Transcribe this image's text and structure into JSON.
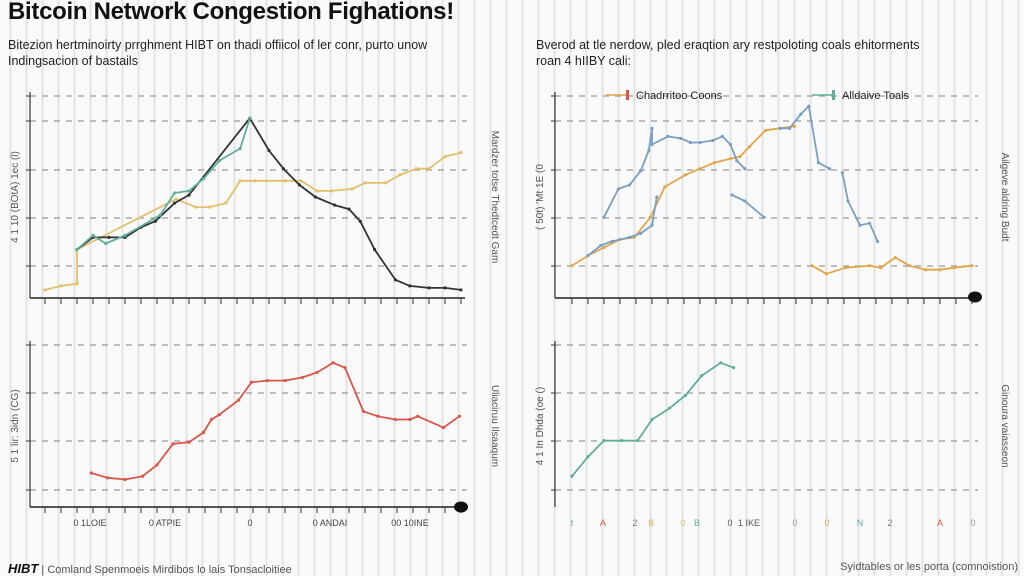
{
  "title": "Bitcoin Network Congestion Fighations!",
  "left_subtitle": [
    "Bitezion hertminoirty prrghment HIBT on thadi offiicol of ler conr, purto unow",
    "Indingsacion of bastails"
  ],
  "right_subtitle": [
    "Bverod at tle nerdow, pled eraqtion ary restpoloting coals ehitorments",
    "roan 4 hIIBY cali:"
  ],
  "footer": {
    "logo": "HIBT",
    "left": "| Comland Spenmoeis Mirdibos lo lais Tonsacloitiee",
    "right": "Syidtables or les porta (comnoistion)"
  },
  "colors": {
    "yellow": "#e3c06a",
    "black": "#333333",
    "teal": "#5fae9c",
    "blue": "#7a9fc4",
    "orange": "#e2a64a",
    "red": "#d9574a"
  },
  "chart_data": [
    {
      "type": "line",
      "ylabel": "4 1 10 (BOtA) 1ec (l)",
      "ylabel_right": "Mardzer totse Thedtcedt Gam",
      "xlim": [
        0,
        26
      ],
      "ylim": [
        0,
        100
      ],
      "grid": true,
      "series": [
        {
          "color": "#e3c06a",
          "points": [
            [
              0,
              4
            ],
            [
              1,
              6
            ],
            [
              2,
              7
            ],
            [
              2,
              24
            ],
            [
              8.2,
              49
            ],
            [
              9.4,
              45
            ],
            [
              10.3,
              45
            ],
            [
              11.3,
              47
            ],
            [
              12.2,
              58
            ],
            [
              13.1,
              58
            ],
            [
              15,
              58
            ],
            [
              16,
              58
            ],
            [
              17,
              53
            ],
            [
              17.9,
              53
            ],
            [
              19.2,
              54
            ],
            [
              20,
              57
            ],
            [
              21.3,
              57
            ],
            [
              22.2,
              61
            ],
            [
              23.2,
              64
            ],
            [
              24,
              64
            ],
            [
              25,
              70
            ],
            [
              26,
              72
            ]
          ]
        },
        {
          "color": "#333333",
          "points": [
            [
              2,
              24
            ],
            [
              3,
              30
            ],
            [
              4,
              30
            ],
            [
              5,
              30
            ],
            [
              6,
              35
            ],
            [
              6.9,
              38
            ],
            [
              8.1,
              47
            ],
            [
              9,
              51
            ],
            [
              12.8,
              89
            ],
            [
              14,
              73
            ],
            [
              14.9,
              64
            ],
            [
              15.9,
              56
            ],
            [
              16.9,
              50
            ],
            [
              18.1,
              46
            ],
            [
              19,
              44
            ],
            [
              19.7,
              38
            ],
            [
              20.6,
              24
            ],
            [
              21.9,
              9
            ],
            [
              22.8,
              6
            ],
            [
              24,
              5
            ],
            [
              25,
              5
            ],
            [
              26,
              4
            ]
          ]
        },
        {
          "color": "#5fae9c",
          "points": [
            [
              2,
              24
            ],
            [
              3,
              31
            ],
            [
              3.8,
              27
            ],
            [
              5,
              31
            ],
            [
              7.2,
              41
            ],
            [
              8.1,
              52
            ],
            [
              9,
              53
            ],
            [
              9.9,
              59
            ],
            [
              10.9,
              68
            ],
            [
              12.2,
              74
            ],
            [
              12.8,
              89
            ]
          ]
        }
      ]
    },
    {
      "type": "line",
      "legend": [
        "Chadrritoo Coons",
        "Alldaive Toals"
      ],
      "legend_placement": "top",
      "ylabel": "( 50t) 'Mt 1E (0",
      "ylabel_right": "Ailgeve aldring Budt",
      "xlim": [
        0,
        25
      ],
      "ylim": [
        0,
        100
      ],
      "grid": true,
      "series": [
        {
          "color": "#e2a64a",
          "points": [
            [
              0,
              16
            ],
            [
              1,
              21
            ],
            [
              2,
              25
            ],
            [
              3,
              29
            ],
            [
              3.9,
              30
            ],
            [
              4.9,
              40
            ],
            [
              5.8,
              55
            ],
            [
              7.1,
              61
            ],
            [
              8,
              64
            ],
            [
              8.9,
              67
            ],
            [
              9.9,
              69
            ],
            [
              10.5,
              70
            ],
            [
              11.1,
              75
            ],
            [
              12.1,
              83
            ],
            [
              13,
              84
            ],
            [
              13.9,
              85
            ]
          ]
        },
        {
          "color": "#e2a64a",
          "points": [
            [
              15,
              16
            ],
            [
              15.9,
              12
            ],
            [
              17.1,
              15
            ],
            [
              18.6,
              16
            ],
            [
              19.3,
              15
            ],
            [
              20.2,
              20
            ],
            [
              21.1,
              16
            ],
            [
              22.1,
              14
            ],
            [
              23,
              14
            ],
            [
              23.9,
              15
            ],
            [
              25,
              16
            ]
          ]
        },
        {
          "color": "#7a9fc4",
          "points": [
            [
              2,
              40
            ],
            [
              2.9,
              54
            ],
            [
              3.6,
              56
            ],
            [
              4.3,
              63
            ],
            [
              4.8,
              73
            ],
            [
              5,
              84
            ],
            [
              5,
              76
            ],
            [
              6,
              80
            ],
            [
              6.8,
              79
            ],
            [
              7.4,
              77
            ],
            [
              8,
              77
            ],
            [
              8.8,
              78
            ],
            [
              9.4,
              80
            ],
            [
              9.9,
              76
            ],
            [
              10.3,
              68
            ],
            [
              10.8,
              64
            ]
          ]
        },
        {
          "color": "#7a9fc4",
          "points": [
            [
              1,
              21
            ],
            [
              1.8,
              26
            ],
            [
              2.5,
              28
            ],
            [
              3.6,
              30
            ],
            [
              4.3,
              32
            ],
            [
              5,
              36
            ],
            [
              5.3,
              50
            ]
          ]
        },
        {
          "color": "#7a9fc4",
          "points": [
            [
              10,
              51
            ],
            [
              10.8,
              48
            ],
            [
              12,
              40
            ]
          ]
        },
        {
          "color": "#7a9fc4",
          "points": [
            [
              13,
              84
            ],
            [
              13.6,
              84
            ],
            [
              14.3,
              91
            ],
            [
              14.8,
              95
            ],
            [
              15.4,
              67
            ],
            [
              16.1,
              64
            ]
          ]
        },
        {
          "color": "#7a9fc4",
          "points": [
            [
              16.9,
              62
            ],
            [
              17.25,
              48
            ],
            [
              18,
              36
            ],
            [
              18.6,
              37
            ],
            [
              19.1,
              28
            ]
          ]
        }
      ]
    },
    {
      "type": "line",
      "ylabel": "5 1 lir: 3idn (CG)",
      "ylabel_right": "Uliaciruu Ilsaaqum",
      "x_tick_labels": [
        "0 1LOIE",
        "0 ATPIE",
        "0",
        "0 ANDAI",
        "00 10INE"
      ],
      "xlim": [
        0,
        26
      ],
      "ylim": [
        0,
        100
      ],
      "grid": true,
      "series": [
        {
          "color": "#d9574a",
          "points": [
            [
              2.9,
              21
            ],
            [
              3.9,
              18
            ],
            [
              5,
              17
            ],
            [
              6.1,
              19
            ],
            [
              7,
              26
            ],
            [
              8,
              39
            ],
            [
              9,
              40
            ],
            [
              9.9,
              46
            ],
            [
              10.4,
              54
            ],
            [
              10.9,
              57
            ],
            [
              12.1,
              66
            ],
            [
              12.9,
              77
            ],
            [
              13.9,
              78
            ],
            [
              15,
              78
            ],
            [
              16.1,
              80
            ],
            [
              17,
              83
            ],
            [
              18,
              89
            ],
            [
              18.75,
              86
            ],
            [
              19.9,
              59
            ],
            [
              20.8,
              56
            ],
            [
              21.9,
              54
            ],
            [
              22.8,
              54
            ],
            [
              23.3,
              56
            ],
            [
              24.9,
              49
            ],
            [
              25.9,
              56
            ]
          ]
        }
      ]
    },
    {
      "type": "line",
      "ylabel": "4 1 In Dhda (oe ()",
      "ylabel_right": "Ginoura vaiasseon",
      "x_tick_labels": [
        {
          "text": "t",
          "color": "#5fae9c"
        },
        {
          "text": "A",
          "color": "#d9574a"
        },
        {
          "text": "2",
          "color": "#777777"
        },
        {
          "text": "8",
          "color": "#e2a64a"
        },
        {
          "text": "0",
          "color": "#e3c06a"
        },
        {
          "text": "B",
          "color": "#5fae9c"
        },
        {
          "text": "0",
          "color": "#555555"
        },
        {
          "text": "1 IKE",
          "color": "#555555"
        },
        {
          "text": "0",
          "color": "#999999"
        },
        {
          "text": "0",
          "color": "#e2a64a"
        },
        {
          "text": "N",
          "color": "#5fae9c"
        },
        {
          "text": "2",
          "color": "#777777"
        },
        {
          "text": "A",
          "color": "#d9574a"
        },
        {
          "text": "0",
          "color": "#999999"
        }
      ],
      "xlim": [
        0,
        25
      ],
      "ylim": [
        0,
        100
      ],
      "grid": true,
      "series": [
        {
          "color": "#5fae9c",
          "points": [
            [
              0,
              19
            ],
            [
              1,
              31
            ],
            [
              2,
              41
            ],
            [
              3.1,
              41
            ],
            [
              4.1,
              41
            ],
            [
              5,
              54
            ],
            [
              6.1,
              61
            ],
            [
              7.1,
              69
            ],
            [
              8.1,
              81
            ],
            [
              9.3,
              89
            ],
            [
              10.1,
              86
            ]
          ]
        }
      ]
    }
  ]
}
